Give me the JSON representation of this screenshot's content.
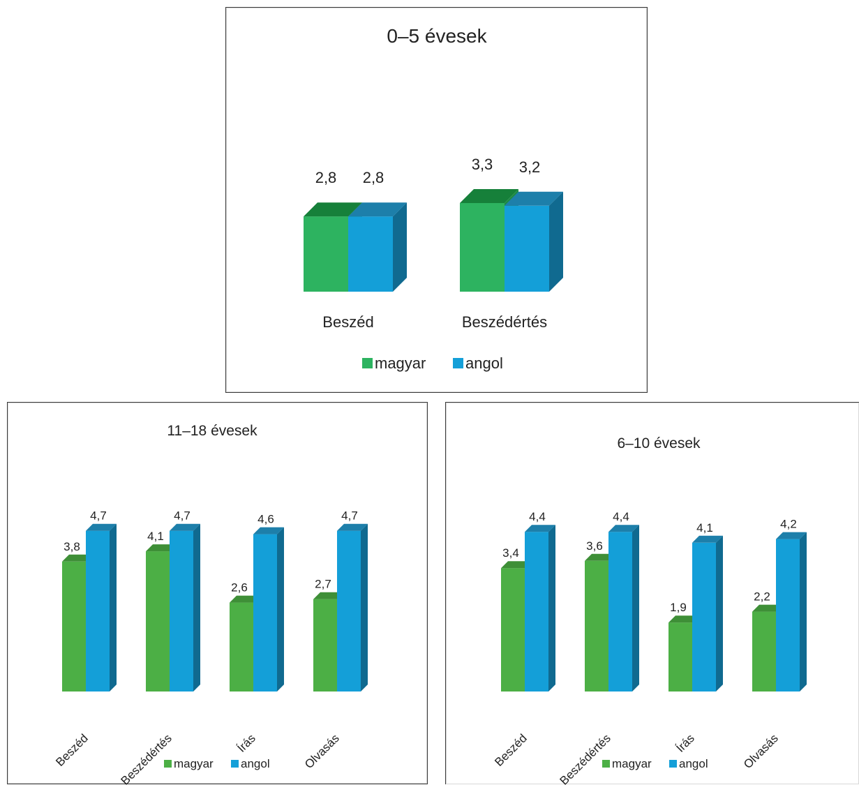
{
  "colors": {
    "magyar_front": "#2db360",
    "magyar_side": "#1e8a45",
    "magyar_top": "#16803a",
    "angol_front": "#149fd8",
    "angol_side": "#106a90",
    "angol_top": "#1d7faa",
    "magyar_front_small": "#4caf45",
    "magyar_top_small": "#3e8f37"
  },
  "legend": {
    "magyar": "magyar",
    "angol": "angol"
  },
  "chart_data": [
    {
      "type": "bar",
      "title": "0–5 évesek",
      "categories": [
        "Beszéd",
        "Beszédértés"
      ],
      "series": [
        {
          "name": "magyar",
          "values": [
            2.8,
            3.3
          ],
          "labels": [
            "2,8",
            "3,3"
          ]
        },
        {
          "name": "angol",
          "values": [
            2.8,
            3.2
          ],
          "labels": [
            "2,8",
            "3,2"
          ]
        }
      ],
      "ylim": [
        0,
        3.6
      ],
      "grid": false,
      "legend_position": "bottom"
    },
    {
      "type": "bar",
      "title": "11–18 évesek",
      "categories": [
        "Beszéd",
        "Beszédértés",
        "Írás",
        "Olvasás"
      ],
      "series": [
        {
          "name": "magyar",
          "values": [
            3.8,
            4.1,
            2.6,
            2.7
          ],
          "labels": [
            "3,8",
            "4,1",
            "2,6",
            "2,7"
          ]
        },
        {
          "name": "angol",
          "values": [
            4.7,
            4.7,
            4.6,
            4.7
          ],
          "labels": [
            "4,7",
            "4,7",
            "4,6",
            "4,7"
          ]
        }
      ],
      "grid": false,
      "legend_position": "bottom"
    },
    {
      "type": "bar",
      "title": "6–10 évesek",
      "categories": [
        "Beszéd",
        "Beszédértés",
        "Írás",
        "Olvasás"
      ],
      "series": [
        {
          "name": "magyar",
          "values": [
            3.4,
            3.6,
            1.9,
            2.2
          ],
          "labels": [
            "3,4",
            "3,6",
            "1,9",
            "2,2"
          ]
        },
        {
          "name": "angol",
          "values": [
            4.4,
            4.4,
            4.1,
            4.2
          ],
          "labels": [
            "4,4",
            "4,4",
            "4,1",
            "4,2"
          ]
        }
      ],
      "grid": false,
      "legend_position": "bottom"
    }
  ]
}
